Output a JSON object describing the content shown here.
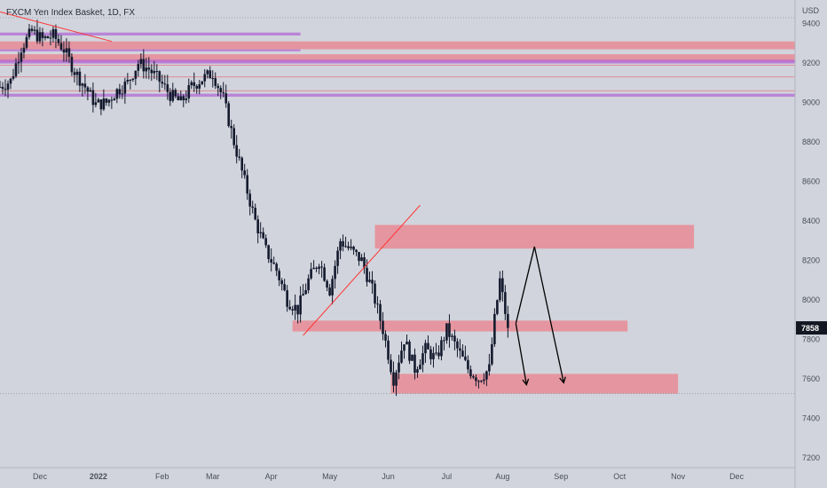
{
  "chart_title": "FXCM Yen Index Basket, 1D, FX",
  "currency_label": "USD",
  "last_price_label": "7858",
  "colors": {
    "background": "#d1d4dc",
    "candle": "#141a2e",
    "zone_red": "#ee7a85",
    "line_red": "#e85d6a",
    "zone_purple": "#b06ad6",
    "arrow": "#000000",
    "trendline": "#ff3333",
    "price_badge": "#131722"
  },
  "chart_data": {
    "type": "candlestick",
    "title": "FXCM Yen Index Basket, 1D, FX",
    "ylabel": "USD",
    "ylim": [
      7150,
      9520
    ],
    "y_ticks": [
      9400,
      9200,
      9000,
      8800,
      8600,
      8400,
      8200,
      8000,
      7800,
      7600,
      7400,
      7200
    ],
    "x_ticks": [
      {
        "label": "Dec",
        "t": 15
      },
      {
        "label": "2022",
        "t": 37
      },
      {
        "label": "Feb",
        "t": 61
      },
      {
        "label": "Mar",
        "t": 80
      },
      {
        "label": "Apr",
        "t": 102
      },
      {
        "label": "May",
        "t": 124
      },
      {
        "label": "Jun",
        "t": 146
      },
      {
        "label": "Jul",
        "t": 168
      },
      {
        "label": "Aug",
        "t": 189
      },
      {
        "label": "Sep",
        "t": 211
      },
      {
        "label": "Oct",
        "t": 233
      },
      {
        "label": "Nov",
        "t": 255
      },
      {
        "label": "Dec",
        "t": 277
      }
    ],
    "last_price": 7858,
    "close_path": [
      [
        0,
        9080
      ],
      [
        4,
        9110
      ],
      [
        8,
        9280
      ],
      [
        12,
        9360
      ],
      [
        16,
        9320
      ],
      [
        20,
        9340
      ],
      [
        24,
        9270
      ],
      [
        28,
        9160
      ],
      [
        32,
        9080
      ],
      [
        36,
        8990
      ],
      [
        40,
        9000
      ],
      [
        44,
        9060
      ],
      [
        48,
        9100
      ],
      [
        52,
        9200
      ],
      [
        56,
        9170
      ],
      [
        60,
        9110
      ],
      [
        64,
        9040
      ],
      [
        68,
        9000
      ],
      [
        72,
        9080
      ],
      [
        76,
        9120
      ],
      [
        80,
        9150
      ],
      [
        84,
        9020
      ],
      [
        88,
        8800
      ],
      [
        92,
        8600
      ],
      [
        96,
        8400
      ],
      [
        100,
        8250
      ],
      [
        104,
        8150
      ],
      [
        108,
        8000
      ],
      [
        112,
        7950
      ],
      [
        116,
        8100
      ],
      [
        120,
        8200
      ],
      [
        124,
        8050
      ],
      [
        128,
        8300
      ],
      [
        132,
        8250
      ],
      [
        136,
        8200
      ],
      [
        140,
        8050
      ],
      [
        144,
        7850
      ],
      [
        148,
        7600
      ],
      [
        152,
        7800
      ],
      [
        156,
        7650
      ],
      [
        160,
        7750
      ],
      [
        164,
        7700
      ],
      [
        168,
        7850
      ],
      [
        172,
        7750
      ],
      [
        176,
        7650
      ],
      [
        180,
        7600
      ],
      [
        184,
        7650
      ],
      [
        186,
        7900
      ],
      [
        188,
        8100
      ],
      [
        191,
        7858
      ]
    ],
    "zones": [
      {
        "color": "red",
        "t1": 141,
        "t2": 261,
        "y_top": 8380,
        "y_bottom": 8260
      },
      {
        "color": "red",
        "t1": 110,
        "t2": 236,
        "y_top": 7895,
        "y_bottom": 7840
      },
      {
        "color": "red",
        "t1": 147,
        "t2": 255,
        "y_top": 7625,
        "y_bottom": 7525
      },
      {
        "color": "red",
        "t1": 0,
        "t2": 299,
        "y_top": 9310,
        "y_bottom": 9270
      },
      {
        "color": "red",
        "t1": 0,
        "t2": 299,
        "y_top": 9245,
        "y_bottom": 9205
      },
      {
        "color": "purple",
        "t1": 0,
        "t2": 113,
        "y_top": 9355,
        "y_bottom": 9340
      },
      {
        "color": "purple",
        "t1": 0,
        "t2": 113,
        "y_top": 9270,
        "y_bottom": 9260
      },
      {
        "color": "purple",
        "t1": 0,
        "t2": 299,
        "y_top": 9218,
        "y_bottom": 9198
      },
      {
        "color": "purple",
        "t1": 0,
        "t2": 299,
        "y_top": 9045,
        "y_bottom": 9030
      }
    ],
    "levels": [
      {
        "y": 9430,
        "style": "dotted"
      },
      {
        "y": 9190,
        "style": "thin"
      },
      {
        "y": 9130,
        "style": "thin"
      },
      {
        "y": 9060,
        "style": "thin"
      },
      {
        "y": 7525,
        "style": "dotted"
      }
    ],
    "trendlines": [
      {
        "t1": 0,
        "y1": 9460,
        "t2": 42,
        "y2": 9310
      },
      {
        "t1": 114,
        "y1": 7820,
        "t2": 158,
        "y2": 8480
      }
    ],
    "arrows": [
      {
        "points": [
          [
            194,
            7880
          ],
          [
            201,
            8270
          ],
          [
            212,
            7580
          ]
        ]
      },
      {
        "points": [
          [
            194,
            7880
          ],
          [
            198,
            7570
          ]
        ]
      }
    ]
  }
}
